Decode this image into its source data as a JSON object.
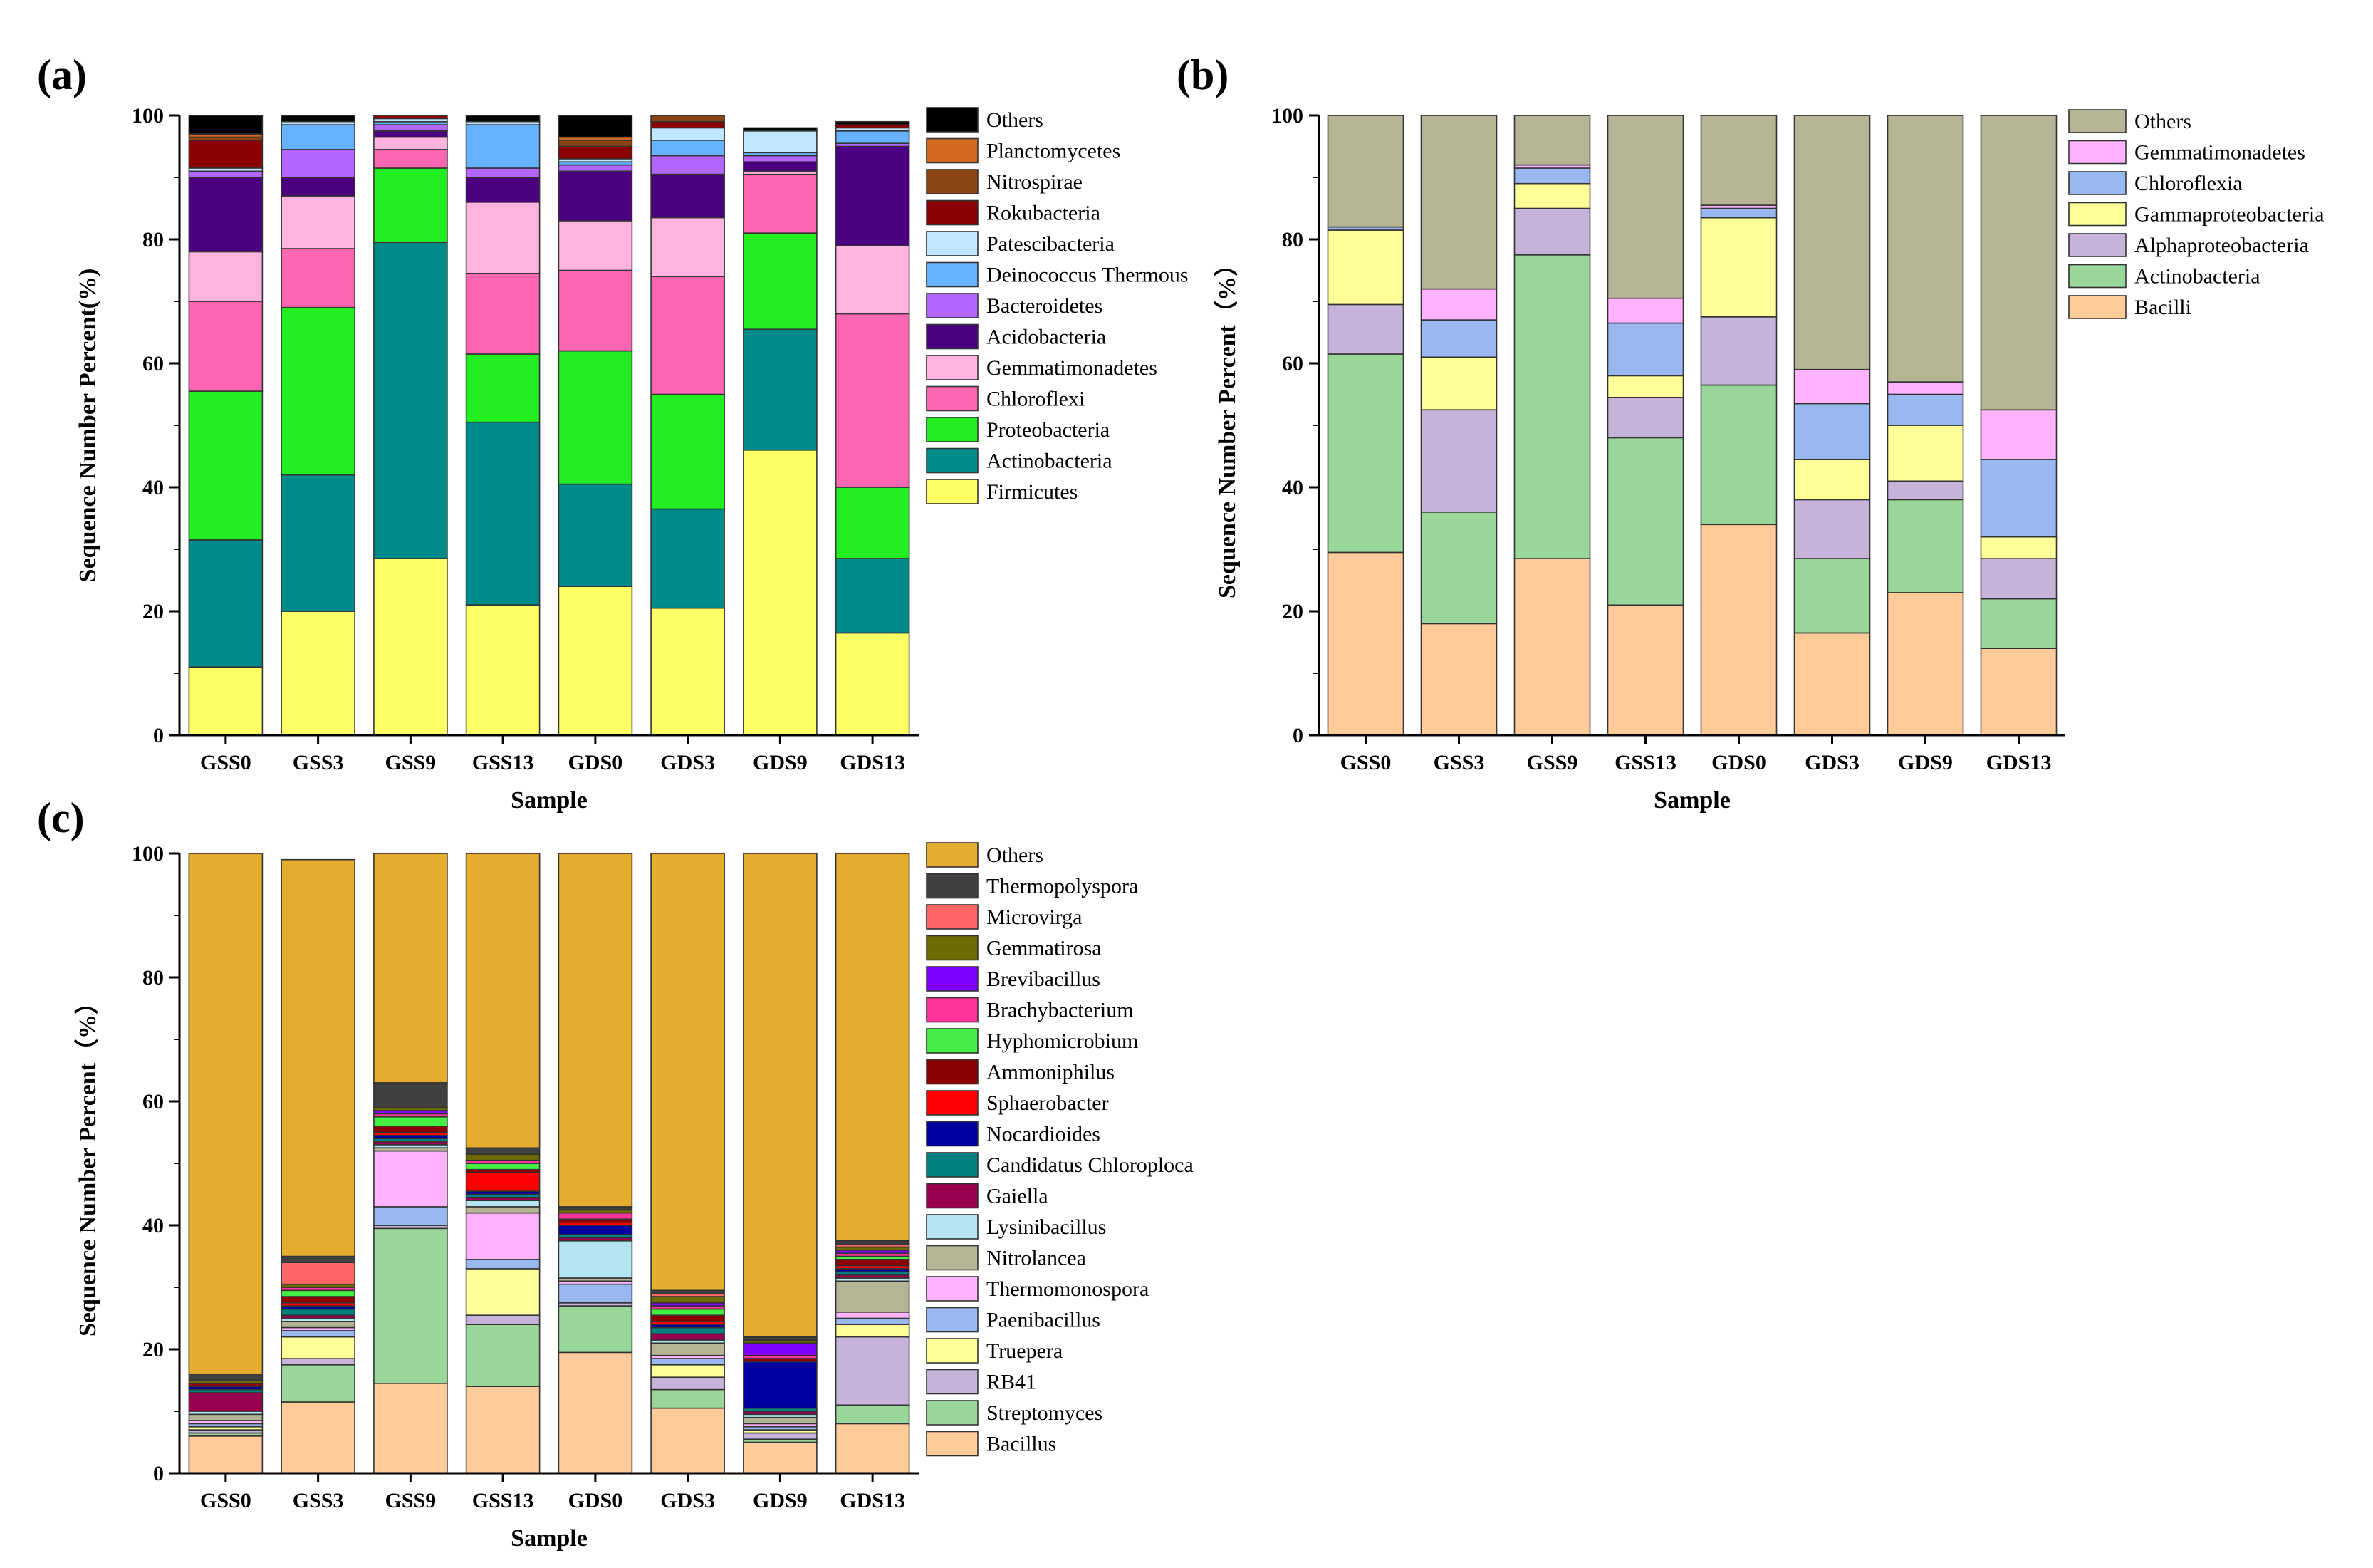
{
  "figure": {
    "panel_labels": [
      "(a)",
      "(b)",
      "(c)"
    ]
  },
  "chart_data": [
    {
      "type": "stacked-bar",
      "panel": "(a)",
      "xlabel": "Sample",
      "ylabel": "Sequence Number Percent(%)",
      "ylim": [
        0,
        100
      ],
      "yticks": [
        0,
        20,
        40,
        60,
        80,
        100
      ],
      "categories": [
        "GSS0",
        "GSS3",
        "GSS9",
        "GSS13",
        "GDS0",
        "GDS3",
        "GDS9",
        "GDS13"
      ],
      "series": [
        {
          "name": "Firmicutes",
          "color": "#FFFF66",
          "values": [
            11,
            20,
            28.5,
            21,
            24,
            20.5,
            46,
            16.5
          ]
        },
        {
          "name": "Actinobacteria",
          "color": "#008B8B",
          "values": [
            20.5,
            22,
            51,
            29.5,
            16.5,
            16,
            19.5,
            12
          ]
        },
        {
          "name": "Proteobacteria",
          "color": "#22EE22",
          "values": [
            24,
            27,
            12,
            11,
            21.5,
            18.5,
            15.5,
            11.5
          ]
        },
        {
          "name": "Chloroflexi",
          "color": "#FF66B2",
          "values": [
            14.5,
            9.5,
            3,
            13,
            13,
            19,
            9.5,
            28
          ]
        },
        {
          "name": "Gemmatimonadetes",
          "color": "#FFB3DE",
          "values": [
            8,
            8.5,
            2,
            11.5,
            8,
            9.5,
            0.5,
            11
          ]
        },
        {
          "name": "Acidobacteria",
          "color": "#4B0082",
          "values": [
            12,
            3,
            1,
            4,
            8,
            7,
            1.5,
            16
          ]
        },
        {
          "name": "Bacteroidetes",
          "color": "#B266FF",
          "values": [
            1,
            4.5,
            1,
            1.5,
            1,
            3,
            1,
            0.5
          ]
        },
        {
          "name": "Deinococcus Thermous",
          "color": "#66B2FF",
          "values": [
            0,
            4,
            0.5,
            7,
            0.5,
            2.5,
            0.5,
            2
          ]
        },
        {
          "name": "Patescibacteria",
          "color": "#BFE7FF",
          "values": [
            0.5,
            0.5,
            0.5,
            0.5,
            0.5,
            2,
            3.5,
            0.5
          ]
        },
        {
          "name": "Rokubacteria",
          "color": "#8B0000",
          "values": [
            4.5,
            0,
            0.5,
            0,
            2,
            1,
            0,
            0.5
          ]
        },
        {
          "name": "Nitrospirae",
          "color": "#8B4513",
          "values": [
            0.5,
            0,
            0,
            0,
            1,
            1,
            0,
            0
          ]
        },
        {
          "name": "Planctomycetes",
          "color": "#D2691E",
          "values": [
            0.5,
            0,
            0,
            0,
            0.5,
            0.5,
            0,
            0
          ]
        },
        {
          "name": "Others",
          "color": "#000000",
          "values": [
            3,
            1,
            1,
            1,
            3.5,
            0.5,
            0.5,
            0.5
          ]
        }
      ]
    },
    {
      "type": "stacked-bar",
      "panel": "(b)",
      "xlabel": "Sample",
      "ylabel": "Sequence Number Percent（%）",
      "ylim": [
        0,
        100
      ],
      "yticks": [
        0,
        20,
        40,
        60,
        80,
        100
      ],
      "categories": [
        "GSS0",
        "GSS3",
        "GSS9",
        "GSS13",
        "GDS0",
        "GDS3",
        "GDS9",
        "GDS13"
      ],
      "series": [
        {
          "name": "Bacilli",
          "color": "#FFCC99",
          "values": [
            29.5,
            18,
            28.5,
            21,
            34,
            16.5,
            23,
            14
          ]
        },
        {
          "name": "Actinobacteria",
          "color": "#99D699",
          "values": [
            32,
            18,
            49,
            27,
            22.5,
            12,
            15,
            8
          ]
        },
        {
          "name": "Alphaproteobacteria",
          "color": "#C7B3D9",
          "values": [
            8,
            16.5,
            7.5,
            6.5,
            11,
            9.5,
            3,
            6.5
          ]
        },
        {
          "name": "Gammaproteobacteria",
          "color": "#FFFF99",
          "values": [
            12,
            8.5,
            4,
            3.5,
            16,
            6.5,
            9,
            3.5
          ]
        },
        {
          "name": "Chloroflexia",
          "color": "#99B8F0",
          "values": [
            0.5,
            6,
            2.5,
            8.5,
            1.5,
            9,
            5,
            12.5
          ]
        },
        {
          "name": "Gemmatimonadetes",
          "color": "#FFB3FF",
          "values": [
            0,
            5,
            0.5,
            4,
            0.5,
            5.5,
            2,
            8
          ]
        },
        {
          "name": "Others",
          "color": "#B5B596",
          "values": [
            18,
            28,
            8,
            29.5,
            14.5,
            41,
            43,
            47.5
          ]
        }
      ]
    },
    {
      "type": "stacked-bar",
      "panel": "(c)",
      "xlabel": "Sample",
      "ylabel": "Sequence Number Percent（%）",
      "ylim": [
        0,
        100
      ],
      "yticks": [
        0,
        20,
        40,
        60,
        80,
        100
      ],
      "categories": [
        "GSS0",
        "GSS3",
        "GSS9",
        "GSS13",
        "GDS0",
        "GDS3",
        "GDS9",
        "GDS13"
      ],
      "series": [
        {
          "name": "Bacillus",
          "color": "#FFCC99",
          "values": [
            6,
            11.5,
            14.5,
            14,
            19.5,
            10.5,
            5,
            8
          ]
        },
        {
          "name": "Streptomyces",
          "color": "#99D699",
          "values": [
            0.5,
            6,
            25,
            10,
            7.5,
            3,
            0.5,
            3
          ]
        },
        {
          "name": "RB41",
          "color": "#C7B3D9",
          "values": [
            0.5,
            1,
            0.5,
            1.5,
            0.5,
            2,
            1,
            11
          ]
        },
        {
          "name": "Truepera",
          "color": "#FFFF99",
          "values": [
            0.5,
            3.5,
            0,
            7.5,
            0,
            2,
            0.5,
            2
          ]
        },
        {
          "name": "Paenibacillus",
          "color": "#99B8F0",
          "values": [
            0.5,
            1,
            3,
            1.5,
            3,
            1,
            0.5,
            1
          ]
        },
        {
          "name": "Thermomonospora",
          "color": "#FFB3FF",
          "values": [
            0.5,
            0.5,
            9,
            7.5,
            0.5,
            0.5,
            0.5,
            1
          ]
        },
        {
          "name": "Nitrolancea",
          "color": "#B5B596",
          "values": [
            1,
            1,
            0.5,
            1,
            0.5,
            2,
            1,
            5
          ]
        },
        {
          "name": "Lysinibacillus",
          "color": "#B3E6F0",
          "values": [
            0.5,
            0.5,
            0.5,
            1,
            6,
            0.5,
            0.5,
            0.5
          ]
        },
        {
          "name": "Gaiella",
          "color": "#990050",
          "values": [
            3,
            0.5,
            0.5,
            0.5,
            0.5,
            1,
            0.5,
            0.5
          ]
        },
        {
          "name": "Candidatus Chloroploca",
          "color": "#008080",
          "values": [
            0.5,
            1,
            0.5,
            0.5,
            0.5,
            1,
            0.5,
            0.5
          ]
        },
        {
          "name": "Nocardioides",
          "color": "#0000A0",
          "values": [
            0.5,
            0.5,
            0.5,
            0.5,
            1.5,
            0.5,
            7.5,
            0.5
          ]
        },
        {
          "name": "Sphaerobacter",
          "color": "#FF0000",
          "values": [
            0,
            0.5,
            0.5,
            3,
            0.5,
            0.5,
            0,
            0.5
          ]
        },
        {
          "name": "Ammoniphilus",
          "color": "#8B0000",
          "values": [
            0.5,
            1,
            1,
            0.5,
            0.5,
            1,
            0.5,
            1
          ]
        },
        {
          "name": "Hyphomicrobium",
          "color": "#44EE44",
          "values": [
            0,
            1,
            1.5,
            1,
            0,
            1,
            0,
            0.5
          ]
        },
        {
          "name": "Brachybacterium",
          "color": "#FF3399",
          "values": [
            0,
            0.5,
            0.5,
            0.5,
            1,
            0.5,
            0.5,
            0.5
          ]
        },
        {
          "name": "Brevibacillus",
          "color": "#8000FF",
          "values": [
            0,
            0,
            0.5,
            0,
            0,
            0.5,
            2,
            0.5
          ]
        },
        {
          "name": "Gemmatirosa",
          "color": "#6B6B00",
          "values": [
            0.5,
            0.5,
            0.5,
            1,
            0.5,
            1,
            0.5,
            0.5
          ]
        },
        {
          "name": "Microvirga",
          "color": "#FF6666",
          "values": [
            0,
            3.5,
            0,
            0,
            0,
            0.5,
            0,
            0.5
          ]
        },
        {
          "name": "Thermopolyspora",
          "color": "#404040",
          "values": [
            1,
            1,
            4,
            1,
            0.5,
            0.5,
            0.5,
            0.5
          ]
        },
        {
          "name": "Others",
          "color": "#E6AC2E",
          "values": [
            85,
            64,
            39,
            47.5,
            58,
            71,
            79,
            63.5
          ]
        }
      ]
    }
  ]
}
